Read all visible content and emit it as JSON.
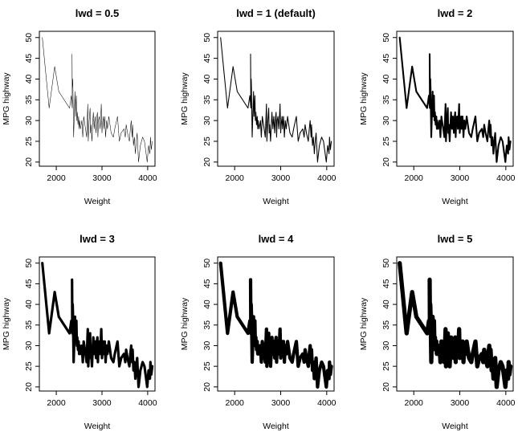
{
  "chart_data": [
    {
      "type": "line",
      "title": "lwd = 0.5",
      "xlabel": "Weight",
      "ylabel": "MPG highway",
      "lwd": 0.5
    },
    {
      "type": "line",
      "title": "lwd = 1 (default)",
      "xlabel": "Weight",
      "ylabel": "MPG highway",
      "lwd": 1
    },
    {
      "type": "line",
      "title": "lwd = 2",
      "xlabel": "Weight",
      "ylabel": "MPG highway",
      "lwd": 2
    },
    {
      "type": "line",
      "title": "lwd = 3",
      "xlabel": "Weight",
      "ylabel": "MPG highway",
      "lwd": 3
    },
    {
      "type": "line",
      "title": "lwd = 4",
      "xlabel": "Weight",
      "ylabel": "MPG highway",
      "lwd": 4
    },
    {
      "type": "line",
      "title": "lwd = 5",
      "xlabel": "Weight",
      "ylabel": "MPG highway",
      "lwd": 5
    }
  ],
  "shared_series": {
    "x": [
      1695,
      1845,
      1965,
      2055,
      2290,
      2330,
      2350,
      2345,
      2350,
      2360,
      2365,
      2380,
      2410,
      2420,
      2440,
      2450,
      2460,
      2475,
      2490,
      2500,
      2510,
      2530,
      2560,
      2580,
      2600,
      2640,
      2665,
      2690,
      2700,
      2720,
      2740,
      2750,
      2760,
      2780,
      2800,
      2810,
      2830,
      2850,
      2870,
      2880,
      2890,
      2900,
      2910,
      2925,
      2940,
      2960,
      2970,
      2985,
      3000,
      3010,
      3030,
      3040,
      3060,
      3080,
      3100,
      3120,
      3150,
      3200,
      3250,
      3280,
      3340,
      3380,
      3420,
      3480,
      3510,
      3530,
      3560,
      3600,
      3620,
      3640,
      3660,
      3670,
      3690,
      3710,
      3730,
      3750,
      3770,
      3800,
      3840,
      3890,
      3930,
      3990,
      4020,
      4050,
      4060,
      4080,
      4100
    ],
    "y": [
      50,
      33,
      43,
      37,
      33,
      36,
      33,
      46,
      38,
      40,
      38,
      26,
      37,
      31,
      36,
      30,
      32,
      29,
      31,
      28,
      30,
      28,
      30,
      26,
      31,
      28,
      26,
      34,
      25,
      30,
      33,
      27,
      29,
      25,
      30,
      32,
      28,
      31,
      27,
      29,
      31,
      32,
      26,
      30,
      31,
      28,
      30,
      34,
      27,
      29,
      31,
      28,
      31,
      26,
      30,
      28,
      31,
      27,
      26,
      28,
      31,
      25,
      27,
      28,
      26,
      29,
      27,
      25,
      28,
      30,
      26,
      29,
      24,
      26,
      22,
      25,
      27,
      20,
      24,
      26,
      25,
      20,
      24,
      22,
      26,
      23,
      25
    ],
    "xlim": [
      1630,
      4160
    ],
    "ylim": [
      19,
      51.5
    ],
    "xticks": [
      2000,
      3000,
      4000
    ],
    "yticks": [
      20,
      25,
      30,
      35,
      40,
      45,
      50
    ],
    "color": "#000000"
  }
}
